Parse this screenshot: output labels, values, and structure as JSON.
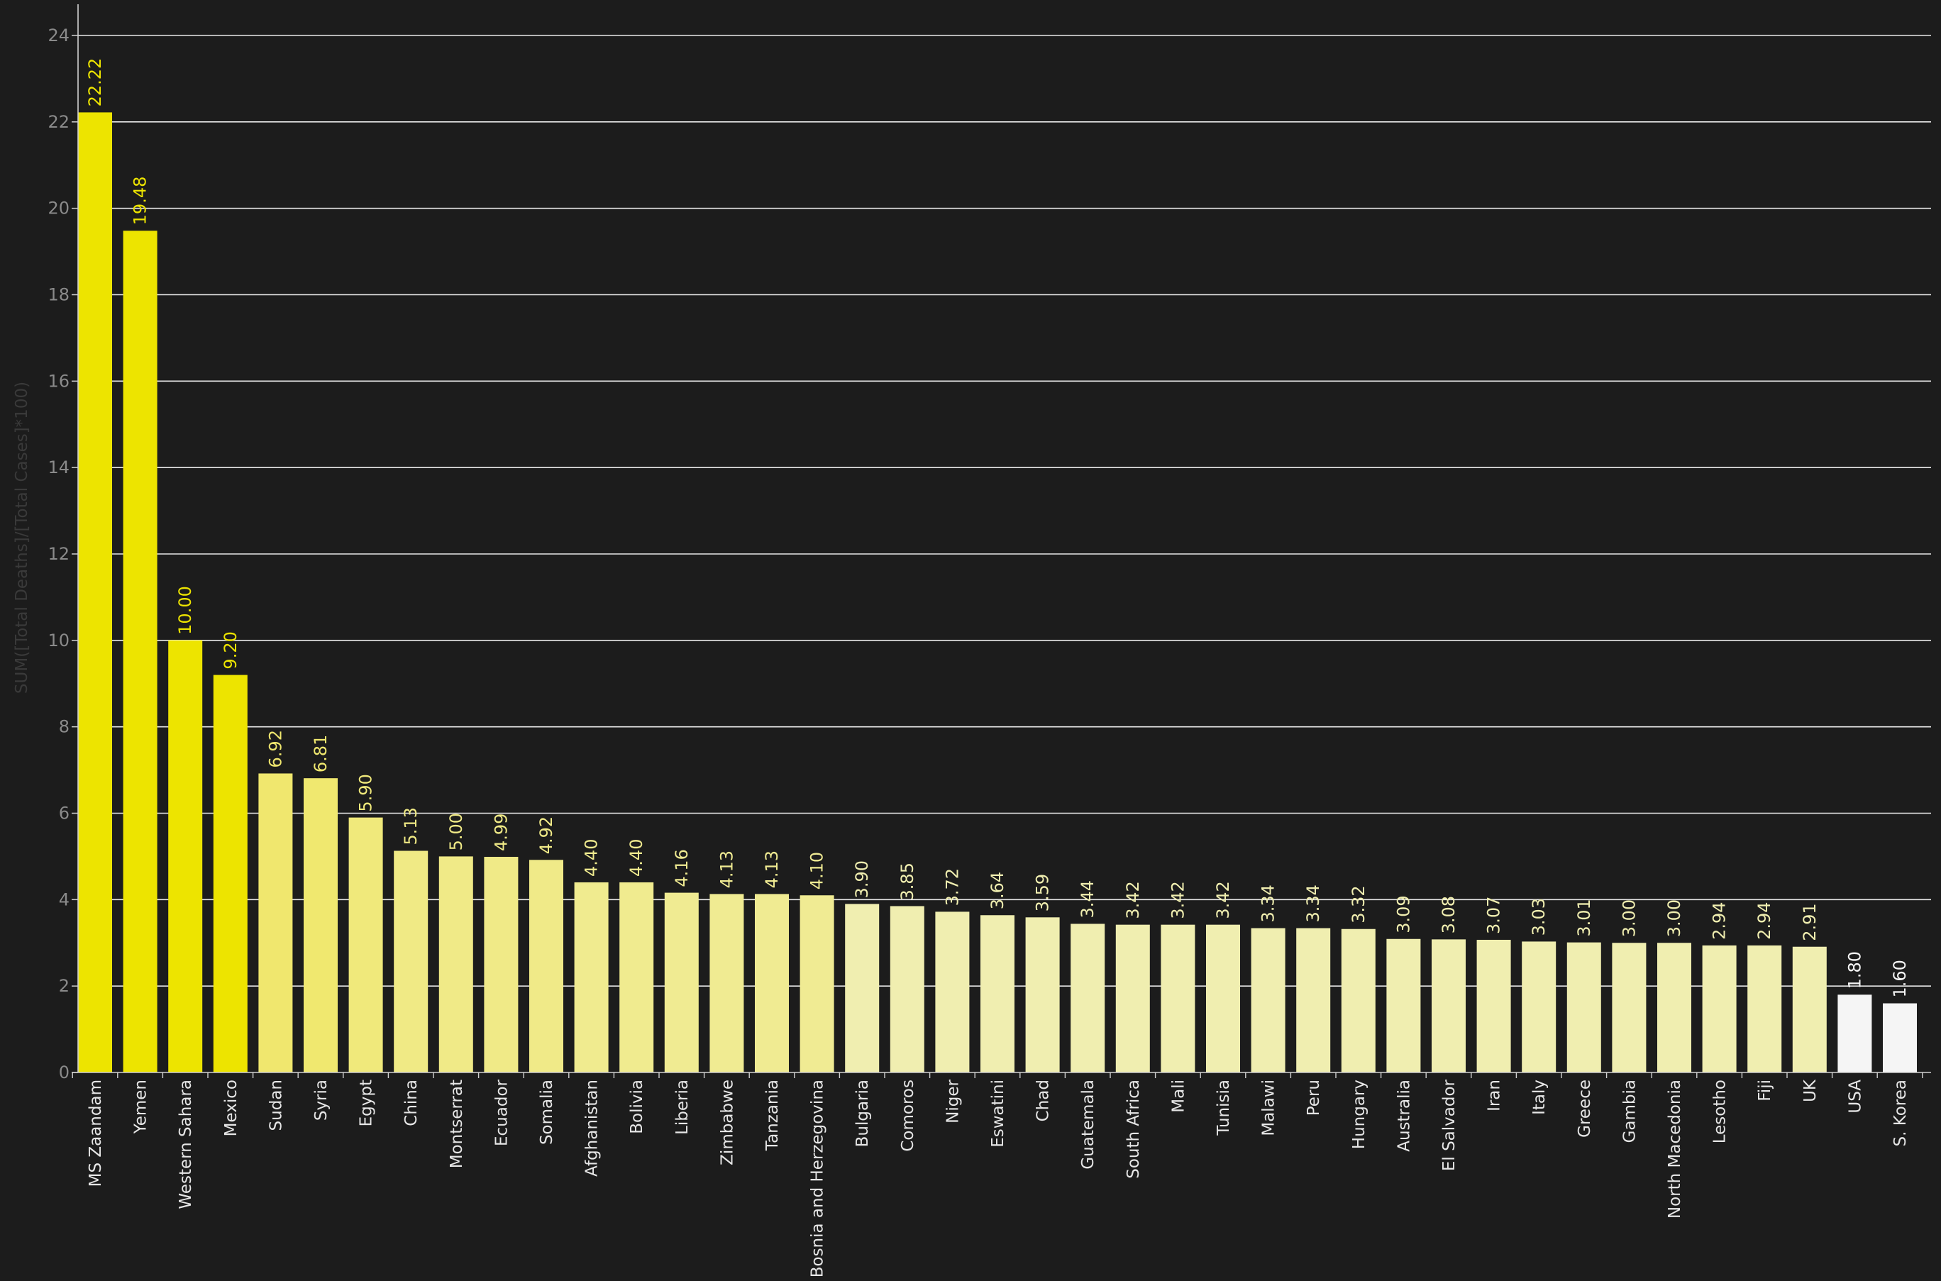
{
  "chart_data": {
    "type": "bar",
    "title": "",
    "xlabel": "",
    "ylabel": "SUM([Total Deaths]/[Total Cases]*100)",
    "ylim": [
      0,
      24
    ],
    "yticks": [
      0,
      2,
      4,
      6,
      8,
      10,
      12,
      14,
      16,
      18,
      20,
      22,
      24
    ],
    "grid": true,
    "legend": "none",
    "categories": [
      "MS Zaandam",
      "Yemen",
      "Western Sahara",
      "Mexico",
      "Sudan",
      "Syria",
      "Egypt",
      "China",
      "Montserrat",
      "Ecuador",
      "Somalia",
      "Afghanistan",
      "Bolivia",
      "Liberia",
      "Zimbabwe",
      "Tanzania",
      "Bosnia and Herzegovina",
      "Bulgaria",
      "Comoros",
      "Niger",
      "Eswatini",
      "Chad",
      "Guatemala",
      "South Africa",
      "Mali",
      "Tunisia",
      "Malawi",
      "Peru",
      "Hungary",
      "Australia",
      "El Salvador",
      "Iran",
      "Italy",
      "Greece",
      "Gambia",
      "North Macedonia",
      "Lesotho",
      "Fiji",
      "UK",
      "USA",
      "S. Korea"
    ],
    "values": [
      22.22,
      19.48,
      10.0,
      9.2,
      6.92,
      6.81,
      5.9,
      5.13,
      5.0,
      4.99,
      4.92,
      4.4,
      4.4,
      4.16,
      4.13,
      4.13,
      4.1,
      3.9,
      3.85,
      3.72,
      3.64,
      3.59,
      3.44,
      3.42,
      3.42,
      3.42,
      3.34,
      3.34,
      3.32,
      3.09,
      3.08,
      3.07,
      3.03,
      3.01,
      3.0,
      3.0,
      2.94,
      2.94,
      2.91,
      1.8,
      1.6
    ],
    "data_labels": [
      "22.22",
      "19.48",
      "10.00",
      "9.20",
      "6.92",
      "6.81",
      "5.90",
      "5.13",
      "5.00",
      "4.99",
      "4.92",
      "4.40",
      "4.40",
      "4.16",
      "4.13",
      "4.13",
      "4.10",
      "3.90",
      "3.85",
      "3.72",
      "3.64",
      "3.59",
      "3.44",
      "3.42",
      "3.42",
      "3.42",
      "3.34",
      "3.34",
      "3.32",
      "3.09",
      "3.08",
      "3.07",
      "3.03",
      "3.01",
      "3.00",
      "3.00",
      "2.94",
      "2.94",
      "2.91",
      "1.80",
      "1.60"
    ],
    "colors": {
      "background": "#1c1c1c",
      "gridline": "#e8e8e8",
      "axis": "#d0d0d0",
      "tick_label": "#8a8a8a",
      "category_label": "#e6e6e6",
      "axis_title": "#3a3a3a",
      "color_scale": [
        "#f5f5f5",
        "#f0eeb0",
        "#f0e660",
        "#ede400"
      ]
    }
  }
}
